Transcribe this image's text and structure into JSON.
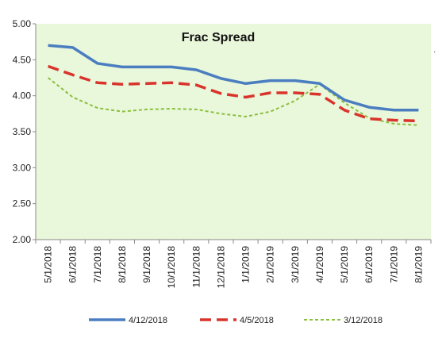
{
  "chart_data": {
    "type": "line",
    "title": "Frac Spread",
    "xlabel": "",
    "ylabel": "",
    "categories": [
      "5/1/2018",
      "6/1/2018",
      "7/1/2018",
      "8/1/2018",
      "9/1/2018",
      "10/1/2018",
      "11/1/2018",
      "12/1/2018",
      "1/1/2019",
      "2/1/2019",
      "3/1/2019",
      "4/1/2019",
      "5/1/2019",
      "6/1/2019",
      "7/1/2019",
      "8/1/2019"
    ],
    "ylim": [
      2.0,
      5.0
    ],
    "y_ticks": [
      "2.00",
      "2.50",
      "3.00",
      "3.50",
      "4.00",
      "4.50",
      "5.00"
    ],
    "grid": false,
    "legend_position": "bottom",
    "plot_background": "#e9f7db",
    "series": [
      {
        "name": "4/12/2018",
        "color": "#4a7ec0",
        "style": "solid",
        "values": [
          4.7,
          4.67,
          4.45,
          4.4,
          4.4,
          4.4,
          4.36,
          4.24,
          4.17,
          4.21,
          4.21,
          4.17,
          3.94,
          3.84,
          3.8,
          3.8
        ]
      },
      {
        "name": "4/5/2018",
        "color": "#d9342b",
        "style": "dashed",
        "values": [
          4.41,
          4.29,
          4.18,
          4.16,
          4.17,
          4.18,
          4.15,
          4.03,
          3.98,
          4.04,
          4.04,
          4.02,
          3.8,
          3.68,
          3.66,
          3.65
        ]
      },
      {
        "name": "3/12/2018",
        "color": "#8cbf3f",
        "style": "dotted",
        "values": [
          4.25,
          3.98,
          3.83,
          3.78,
          3.81,
          3.82,
          3.81,
          3.75,
          3.71,
          3.78,
          3.93,
          4.16,
          3.9,
          3.69,
          3.61,
          3.59
        ]
      }
    ]
  }
}
